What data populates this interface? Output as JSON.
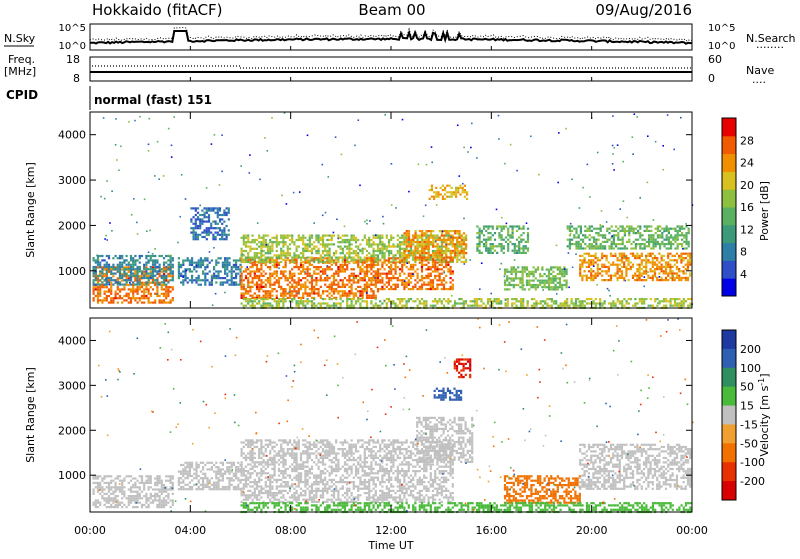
{
  "header": {
    "station": "Hokkaido (fitACF)",
    "beam": "Beam 00",
    "date": "09/Aug/2016"
  },
  "sky_panel": {
    "left_label": "N.Sky",
    "right_label": "N.Search",
    "right_marker": "........",
    "left_ticks": [
      "10^5",
      "10^0"
    ],
    "right_ticks": [
      "10^5",
      "10^0"
    ]
  },
  "freq_panel": {
    "left_label_1": "Freq.",
    "left_label_2": "[MHz]",
    "right_label": "Nave",
    "right_marker": "....",
    "left_ticks": [
      "18",
      "8"
    ],
    "right_ticks": [
      "60",
      "0"
    ]
  },
  "cpid": {
    "label": "CPID",
    "mode": "normal (fast) 151"
  },
  "chart_data": [
    {
      "type": "heatmap",
      "name": "power",
      "ylabel": "Slant Range [km]",
      "xlabel": "",
      "x_ticks": [
        "00:00",
        "04:00",
        "08:00",
        "12:00",
        "16:00",
        "20:00",
        "00:00"
      ],
      "y_ticks": [
        1000,
        2000,
        3000,
        4000
      ],
      "ylim": [
        180,
        4500
      ],
      "xlim_hours": [
        0,
        24
      ],
      "colorbar": {
        "label": "Power [dB]",
        "ticks": [
          4,
          8,
          12,
          16,
          20,
          24,
          28
        ],
        "range": [
          0,
          32
        ]
      },
      "regions": [
        {
          "t0": 0.1,
          "t1": 3.3,
          "r0": 300,
          "r1": 1100,
          "level": 26
        },
        {
          "t0": 0.1,
          "t1": 3.3,
          "r0": 700,
          "r1": 1350,
          "level": 9
        },
        {
          "t0": 3.5,
          "t1": 6.0,
          "r0": 700,
          "r1": 1300,
          "level": 8
        },
        {
          "t0": 4.0,
          "t1": 5.5,
          "r0": 1700,
          "r1": 2400,
          "level": 7
        },
        {
          "t0": 6.0,
          "t1": 11.5,
          "r0": 400,
          "r1": 1300,
          "level": 26
        },
        {
          "t0": 6.0,
          "t1": 15.0,
          "r0": 1200,
          "r1": 1800,
          "level": 18
        },
        {
          "t0": 11.0,
          "t1": 14.5,
          "r0": 600,
          "r1": 1300,
          "level": 26
        },
        {
          "t0": 12.5,
          "t1": 15.0,
          "r0": 1300,
          "r1": 1900,
          "level": 24
        },
        {
          "t0": 13.5,
          "t1": 15.0,
          "r0": 2600,
          "r1": 2900,
          "level": 22
        },
        {
          "t0": 15.4,
          "t1": 17.5,
          "r0": 1400,
          "r1": 2000,
          "level": 14
        },
        {
          "t0": 16.5,
          "t1": 19.0,
          "r0": 600,
          "r1": 1100,
          "level": 16
        },
        {
          "t0": 19.5,
          "t1": 23.9,
          "r0": 800,
          "r1": 1400,
          "level": 24
        },
        {
          "t0": 19.0,
          "t1": 23.9,
          "r0": 1500,
          "r1": 2000,
          "level": 15
        },
        {
          "t0": 6.0,
          "t1": 23.9,
          "r0": 200,
          "r1": 400,
          "level": 18
        }
      ]
    },
    {
      "type": "heatmap",
      "name": "velocity",
      "ylabel": "Slant Range [km]",
      "xlabel": "Time UT",
      "x_ticks": [
        "00:00",
        "04:00",
        "08:00",
        "12:00",
        "16:00",
        "20:00",
        "00:00"
      ],
      "y_ticks": [
        1000,
        2000,
        3000,
        4000
      ],
      "ylim": [
        180,
        4500
      ],
      "xlim_hours": [
        0,
        24
      ],
      "colorbar": {
        "label": "Velocity [m s^-1]",
        "ticks": [
          200,
          100,
          50,
          15,
          -15,
          -50,
          -100,
          -200
        ],
        "range": [
          -250,
          250
        ]
      },
      "regions": [
        {
          "t0": 0.1,
          "t1": 3.3,
          "r0": 300,
          "r1": 1000,
          "level": 0
        },
        {
          "t0": 3.5,
          "t1": 6.0,
          "r0": 700,
          "r1": 1300,
          "level": 0
        },
        {
          "t0": 6.0,
          "t1": 14.5,
          "r0": 400,
          "r1": 1800,
          "level": 0
        },
        {
          "t0": 13.0,
          "t1": 15.2,
          "r0": 1300,
          "r1": 2300,
          "level": 0
        },
        {
          "t0": 13.7,
          "t1": 14.8,
          "r0": 2700,
          "r1": 2950,
          "level": 160
        },
        {
          "t0": 14.5,
          "t1": 15.2,
          "r0": 3200,
          "r1": 3600,
          "level": -200
        },
        {
          "t0": 16.5,
          "t1": 19.5,
          "r0": 400,
          "r1": 1000,
          "level": -70
        },
        {
          "t0": 19.5,
          "t1": 23.9,
          "r0": 700,
          "r1": 1700,
          "level": 0
        },
        {
          "t0": 6.0,
          "t1": 23.9,
          "r0": 200,
          "r1": 400,
          "level": 30
        }
      ]
    }
  ]
}
